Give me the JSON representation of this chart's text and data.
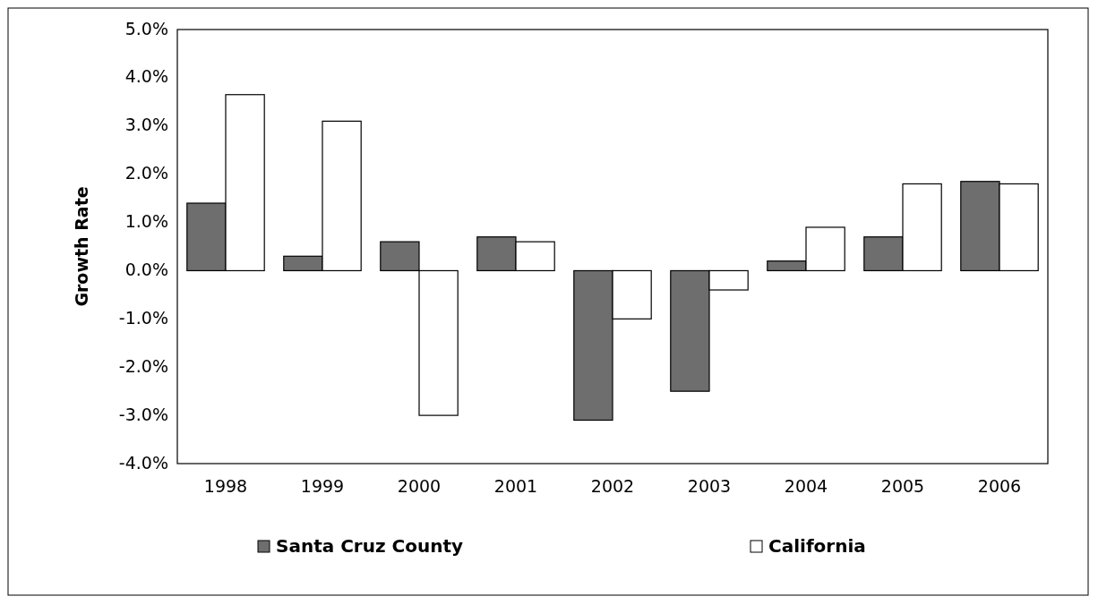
{
  "chart_data": {
    "type": "bar",
    "ylabel": "Growth Rate",
    "categories": [
      "1998",
      "1999",
      "2000",
      "2001",
      "2002",
      "2003",
      "2004",
      "2005",
      "2006"
    ],
    "series": [
      {
        "name": "Santa Cruz County",
        "color": "#6e6e6e",
        "values": [
          1.4,
          0.3,
          0.6,
          0.7,
          -3.1,
          -2.5,
          0.2,
          0.7,
          1.85
        ]
      },
      {
        "name": "California",
        "color": "#ffffff",
        "values": [
          3.65,
          3.1,
          -3.0,
          0.6,
          -1.0,
          -0.4,
          0.9,
          1.8,
          1.8
        ]
      }
    ],
    "ylim": [
      -4,
      5
    ],
    "yticks": [
      {
        "value": -4,
        "label": "-4.0%"
      },
      {
        "value": -3,
        "label": "-3.0%"
      },
      {
        "value": -2,
        "label": "-2.0%"
      },
      {
        "value": -1,
        "label": "-1.0%"
      },
      {
        "value": 0,
        "label": "0.0%"
      },
      {
        "value": 1,
        "label": "1.0%"
      },
      {
        "value": 2,
        "label": "2.0%"
      },
      {
        "value": 3,
        "label": "3.0%"
      },
      {
        "value": 4,
        "label": "4.0%"
      },
      {
        "value": 5,
        "label": "5.0%"
      }
    ],
    "legend": "bottom"
  }
}
